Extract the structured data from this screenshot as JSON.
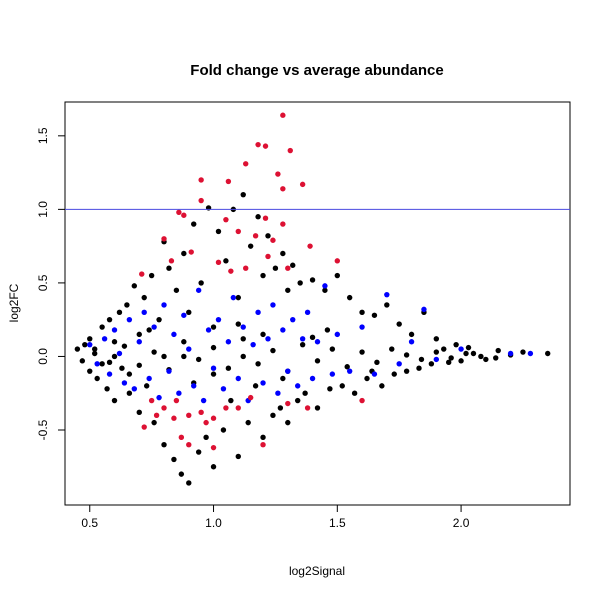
{
  "chart_data": {
    "type": "scatter",
    "title": "Fold change vs average abundance",
    "x_label": "log2Signal",
    "y_label": "log2FC",
    "xlim": [
      0.4,
      2.44
    ],
    "ylim": [
      -1.01,
      1.73
    ],
    "xticks": [
      0.5,
      {
        "value": 1,
        "label": "1.0"
      },
      1.5,
      {
        "value": 2,
        "label": "2.0"
      }
    ],
    "yticks": [
      -0.5,
      {
        "value": 0,
        "label": "0.0"
      },
      0.5,
      {
        "value": 1,
        "label": "1.0"
      },
      1.5
    ],
    "hline": {
      "value": 1,
      "color": "#4a4ae0"
    },
    "series": [
      {
        "color": "#000000",
        "x": [
          0.45,
          0.47,
          0.48,
          0.5,
          0.5,
          0.52,
          0.53,
          0.55,
          0.55,
          0.57,
          0.58,
          0.6,
          0.6,
          0.62,
          0.63,
          0.65,
          0.66,
          0.68,
          0.7,
          0.7,
          0.72,
          0.73,
          0.75,
          0.76,
          0.78,
          0.8,
          0.8,
          0.82,
          0.84,
          0.85,
          0.87,
          0.88,
          0.9,
          0.9,
          0.92,
          0.94,
          0.95,
          0.97,
          0.98,
          1.0,
          1.0,
          1.02,
          1.04,
          1.05,
          1.07,
          1.08,
          1.1,
          1.1,
          1.12,
          1.14,
          1.15,
          1.17,
          1.18,
          1.2,
          1.2,
          1.22,
          1.24,
          1.25,
          1.27,
          1.28,
          1.3,
          1.3,
          1.32,
          1.34,
          1.35,
          1.37,
          1.4,
          1.42,
          1.45,
          1.47,
          1.5,
          1.52,
          1.55,
          1.57,
          1.6,
          1.62,
          1.65,
          1.68,
          1.7,
          1.73,
          1.75,
          1.78,
          1.8,
          1.83,
          1.85,
          1.88,
          1.9,
          1.93,
          1.95,
          1.98,
          2.0,
          2.03,
          2.05,
          2.1,
          2.15,
          2.2,
          2.25,
          2.35,
          0.88,
          1.12,
          0.52,
          0.58,
          0.64,
          0.7,
          0.76,
          0.82,
          0.88,
          0.94,
          1.0,
          1.06,
          1.12,
          1.18,
          1.24,
          1.3,
          1.36,
          1.42,
          1.48,
          1.54,
          1.6,
          1.66,
          1.72,
          1.78,
          1.84,
          1.9,
          1.96,
          2.02,
          2.08,
          2.14,
          0.6,
          0.8,
          1.0,
          1.2,
          1.4,
          0.74,
          0.92,
          1.1,
          1.28,
          1.46,
          1.64,
          0.66
        ],
        "values": [
          0.05,
          -0.03,
          0.08,
          -0.1,
          0.12,
          0.02,
          -0.15,
          0.2,
          -0.05,
          -0.22,
          0.25,
          0.1,
          -0.3,
          0.3,
          -0.08,
          0.35,
          -0.25,
          0.48,
          0.15,
          -0.38,
          0.4,
          -0.2,
          0.55,
          -0.45,
          0.25,
          0.78,
          -0.6,
          0.6,
          -0.7,
          0.45,
          -0.8,
          0.7,
          -0.86,
          0.3,
          0.9,
          -0.65,
          0.5,
          -0.55,
          1.01,
          0.2,
          -0.75,
          0.85,
          -0.5,
          0.65,
          -0.3,
          1.0,
          0.4,
          -0.68,
          1.1,
          -0.45,
          0.75,
          -0.2,
          0.95,
          0.55,
          -0.55,
          0.82,
          -0.4,
          0.6,
          -0.35,
          0.7,
          0.45,
          -0.45,
          0.62,
          -0.3,
          0.5,
          -0.25,
          0.52,
          -0.35,
          0.45,
          -0.22,
          0.55,
          -0.2,
          0.4,
          -0.25,
          0.3,
          -0.15,
          0.28,
          -0.2,
          0.35,
          -0.12,
          0.22,
          -0.1,
          0.15,
          -0.08,
          0.3,
          -0.05,
          0.12,
          0.05,
          -0.04,
          0.08,
          -0.03,
          0.06,
          0.02,
          -0.02,
          0.04,
          0.01,
          0.03,
          0.02,
          0.0,
          0.0,
          0.05,
          -0.04,
          0.07,
          -0.06,
          0.03,
          -0.09,
          0.1,
          -0.02,
          0.06,
          -0.08,
          0.12,
          -0.05,
          0.04,
          -0.1,
          0.08,
          -0.03,
          0.05,
          -0.07,
          0.03,
          -0.04,
          0.05,
          0.01,
          -0.02,
          0.03,
          -0.01,
          0.02,
          0.0,
          -0.01,
          0.0,
          0.0,
          -0.12,
          0.15,
          0.13,
          0.18,
          -0.18,
          0.22,
          -0.15,
          0.18,
          -0.1,
          -0.12
        ]
      },
      {
        "color": "#0000ff",
        "x": [
          0.5,
          0.53,
          0.56,
          0.58,
          0.6,
          0.62,
          0.64,
          0.66,
          0.68,
          0.7,
          0.72,
          0.74,
          0.76,
          0.78,
          0.8,
          0.82,
          0.84,
          0.86,
          0.88,
          0.9,
          0.92,
          0.94,
          0.96,
          0.98,
          1.0,
          1.02,
          1.04,
          1.06,
          1.08,
          1.1,
          1.12,
          1.14,
          1.16,
          1.18,
          1.2,
          1.22,
          1.24,
          1.26,
          1.28,
          1.3,
          1.32,
          1.34,
          1.36,
          1.38,
          1.4,
          1.42,
          1.45,
          1.48,
          1.5,
          1.55,
          1.6,
          1.65,
          1.7,
          1.75,
          1.8,
          1.85,
          1.9,
          2.0,
          2.2,
          2.28
        ],
        "values": [
          0.08,
          -0.05,
          0.12,
          -0.12,
          0.18,
          0.02,
          -0.18,
          0.25,
          -0.22,
          0.1,
          0.3,
          -0.15,
          0.2,
          -0.28,
          0.35,
          -0.1,
          0.15,
          -0.25,
          0.28,
          0.05,
          -0.2,
          0.45,
          -0.3,
          0.18,
          -0.08,
          0.25,
          -0.22,
          0.1,
          0.4,
          -0.15,
          0.2,
          -0.3,
          0.08,
          0.3,
          -0.18,
          0.12,
          0.35,
          -0.25,
          0.18,
          -0.1,
          0.25,
          -0.2,
          0.12,
          0.3,
          -0.15,
          0.1,
          0.48,
          -0.12,
          0.15,
          -0.1,
          0.2,
          -0.12,
          0.42,
          -0.05,
          0.1,
          0.32,
          -0.02,
          0.05,
          0.02,
          0.02
        ]
      },
      {
        "color": "#dd1133",
        "x": [
          1.28,
          1.18,
          1.21,
          1.31,
          1.13,
          1.26,
          0.95,
          1.36,
          1.28,
          1.06,
          0.95,
          0.86,
          0.88,
          1.05,
          1.21,
          1.28,
          1.1,
          1.17,
          0.8,
          0.91,
          1.24,
          1.39,
          1.02,
          1.13,
          1.07,
          0.71,
          1.5,
          1.3,
          0.83,
          1.22,
          0.75,
          0.8,
          0.85,
          0.9,
          0.95,
          1.0,
          1.05,
          1.1,
          0.72,
          0.87,
          0.9,
          1.0,
          1.2,
          0.77,
          1.3,
          1.15,
          1.38,
          1.6,
          0.97,
          0.84
        ],
        "values": [
          1.64,
          1.44,
          1.43,
          1.4,
          1.31,
          1.24,
          1.2,
          1.17,
          1.14,
          1.19,
          1.06,
          0.98,
          0.96,
          0.93,
          0.94,
          0.9,
          0.85,
          0.82,
          0.8,
          0.71,
          0.79,
          0.75,
          0.64,
          0.6,
          0.58,
          0.56,
          0.65,
          0.6,
          0.65,
          0.68,
          -0.3,
          -0.35,
          -0.3,
          -0.4,
          -0.38,
          -0.42,
          -0.35,
          -0.35,
          -0.48,
          -0.55,
          -0.6,
          -0.62,
          -0.6,
          -0.4,
          -0.32,
          -0.28,
          -0.35,
          -0.3,
          -0.45,
          -0.42
        ]
      }
    ]
  }
}
